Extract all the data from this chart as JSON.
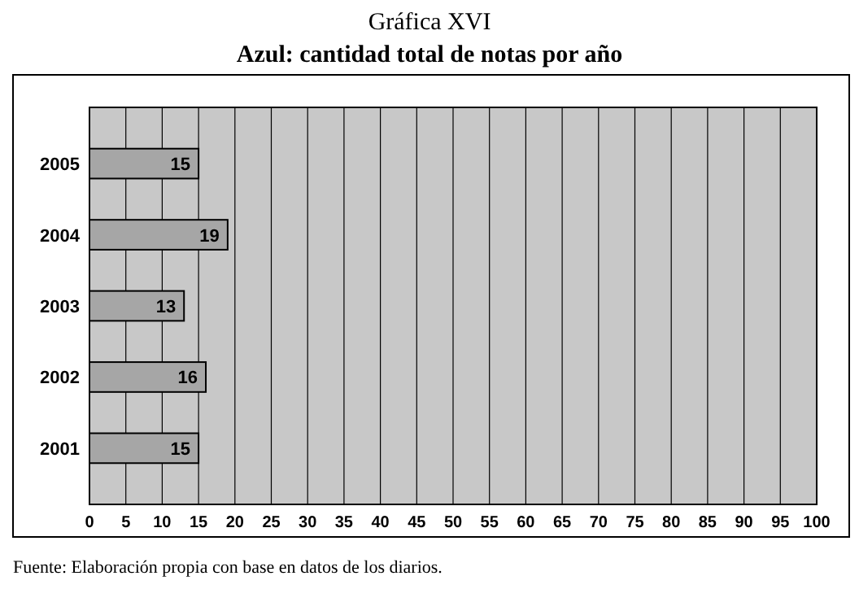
{
  "chart_data": {
    "type": "bar",
    "orientation": "horizontal",
    "title": "Gráfica XVI",
    "subtitle": "Azul: cantidad total de notas por año",
    "categories": [
      "2005",
      "2004",
      "2003",
      "2002",
      "2001"
    ],
    "values": [
      15,
      19,
      13,
      16,
      15
    ],
    "color": "#a6a6a6",
    "data_labels": true,
    "xlim": [
      0,
      100
    ],
    "xticks": [
      0,
      5,
      10,
      15,
      20,
      25,
      30,
      35,
      40,
      45,
      50,
      55,
      60,
      65,
      70,
      75,
      80,
      85,
      90,
      95,
      100
    ],
    "grid": "x",
    "annotations": [
      "Fuente: Elaboración propia con base en datos de los diarios."
    ]
  }
}
